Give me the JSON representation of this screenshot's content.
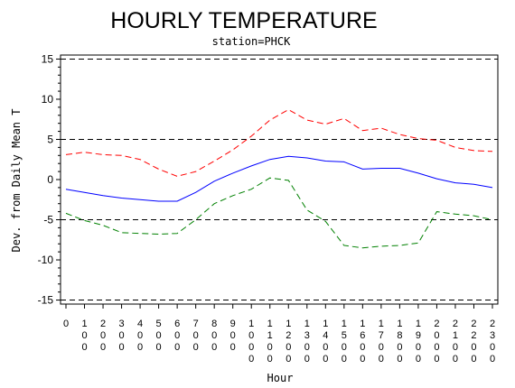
{
  "chart_data": {
    "type": "line",
    "title": "HOURLY TEMPERATURE",
    "subtitle": "station=PHCK",
    "xlabel": "Hour",
    "ylabel": "Dev. from Daily Mean T",
    "x": [
      0,
      100,
      200,
      300,
      400,
      500,
      600,
      700,
      800,
      900,
      1000,
      1100,
      1200,
      1300,
      1400,
      1500,
      1600,
      1700,
      1800,
      1900,
      2000,
      2100,
      2200,
      2300
    ],
    "x_tick_labels": [
      "0",
      "100",
      "200",
      "300",
      "400",
      "500",
      "600",
      "700",
      "800",
      "900",
      "1000",
      "1100",
      "1200",
      "1300",
      "1400",
      "1500",
      "1600",
      "1700",
      "1800",
      "1900",
      "2000",
      "2100",
      "2200",
      "2300"
    ],
    "ylim": [
      -15.5,
      15.5
    ],
    "y_ticks": [
      -15,
      -10,
      -5,
      0,
      5,
      10,
      15
    ],
    "reference_lines": [
      -15,
      -5,
      5,
      15
    ],
    "grid": false,
    "legend": "none",
    "series": [
      {
        "color": "#0000ff",
        "style": "solid",
        "values": [
          -1.2,
          -1.6,
          -2.0,
          -2.3,
          -2.5,
          -2.7,
          -2.7,
          -1.6,
          -0.2,
          0.8,
          1.7,
          2.5,
          2.9,
          2.7,
          2.3,
          2.2,
          1.3,
          1.4,
          1.4,
          0.8,
          0.1,
          -0.4,
          -0.6,
          -1.0
        ]
      },
      {
        "color": "#ff0000",
        "style": "dashed",
        "values": [
          3.1,
          3.4,
          3.1,
          3.0,
          2.5,
          1.3,
          0.4,
          1.0,
          2.3,
          3.7,
          5.4,
          7.4,
          8.7,
          7.4,
          6.9,
          7.6,
          6.1,
          6.4,
          5.6,
          5.1,
          4.9,
          4.0,
          3.6,
          3.5
        ]
      },
      {
        "color": "#008000",
        "style": "dashed",
        "values": [
          -4.2,
          -5.1,
          -5.7,
          -6.6,
          -6.7,
          -6.8,
          -6.7,
          -5.0,
          -3.0,
          -2.0,
          -1.2,
          0.2,
          -0.1,
          -3.8,
          -5.2,
          -8.2,
          -8.5,
          -8.3,
          -8.2,
          -7.9,
          -4.0,
          -4.3,
          -4.5,
          -5.0
        ]
      }
    ]
  }
}
